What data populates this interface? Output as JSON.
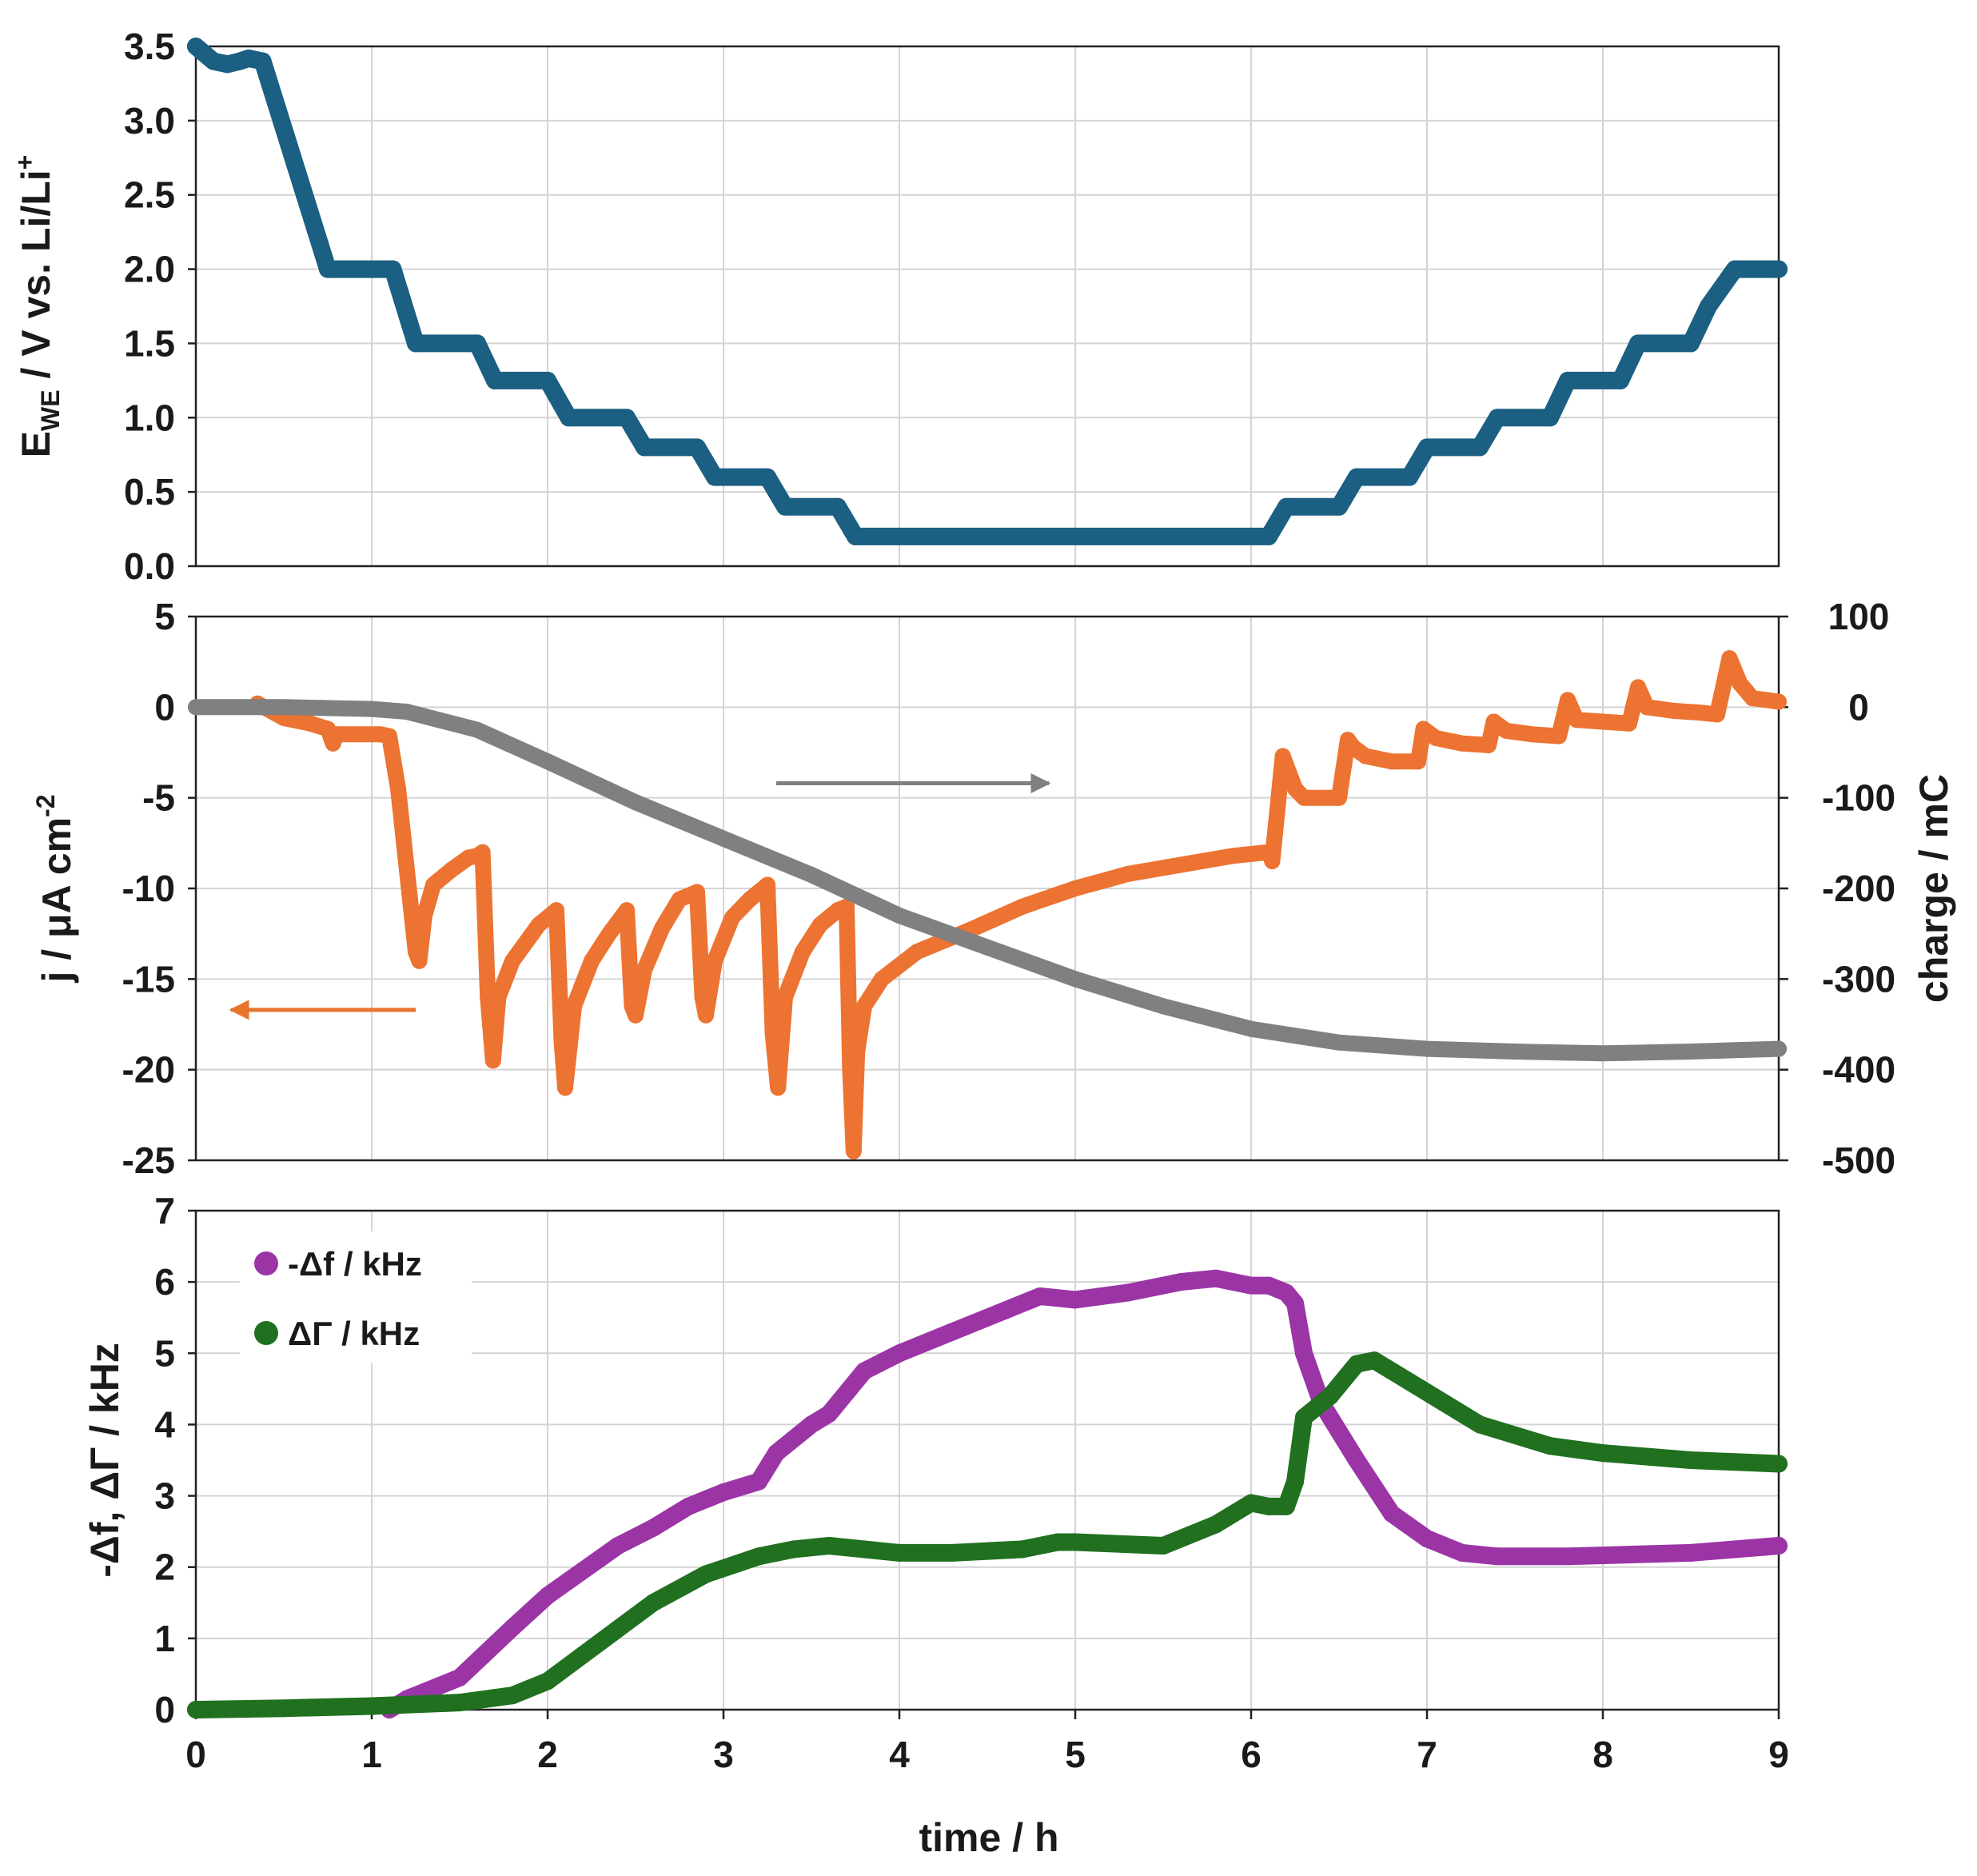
{
  "chart_data": [
    {
      "type": "line",
      "panel": "top",
      "ylabel": "E_WE / V vs. Li/Li+",
      "ylabel_parts": {
        "main": "E",
        "sub": "WE",
        "rest": " / V vs. Li/Li",
        "sup": "+"
      },
      "xlim": [
        0,
        9
      ],
      "ylim": [
        0,
        3.5
      ],
      "yticks": [
        "0.0",
        "0.5",
        "1.0",
        "1.5",
        "2.0",
        "2.5",
        "3.0",
        "3.5"
      ],
      "grid": true,
      "series": [
        {
          "name": "E_WE",
          "color": "#1b5f82",
          "x": [
            0,
            0.05,
            0.1,
            0.18,
            0.25,
            0.3,
            0.38,
            0.75,
            1.12,
            1.25,
            1.6,
            1.7,
            2.0,
            2.12,
            2.45,
            2.55,
            2.85,
            2.95,
            3.25,
            3.35,
            3.65,
            3.75,
            6.1,
            6.2,
            6.5,
            6.6,
            6.9,
            7.0,
            7.3,
            7.4,
            7.7,
            7.8,
            8.1,
            8.2,
            8.5,
            8.6,
            8.75,
            9.0
          ],
          "y": [
            3.5,
            3.45,
            3.4,
            3.38,
            3.4,
            3.42,
            3.4,
            2.0,
            2.0,
            1.5,
            1.5,
            1.25,
            1.25,
            1.0,
            1.0,
            0.8,
            0.8,
            0.6,
            0.6,
            0.4,
            0.4,
            0.2,
            0.2,
            0.4,
            0.4,
            0.6,
            0.6,
            0.8,
            0.8,
            1.0,
            1.0,
            1.25,
            1.25,
            1.5,
            1.5,
            1.75,
            2.0,
            2.0
          ]
        }
      ]
    },
    {
      "type": "line",
      "panel": "middle",
      "ylabel": "j / μA cm-2",
      "ylabel_parts": {
        "main": "j  / μA cm",
        "sup": "-2"
      },
      "y2label": "charge / mC",
      "xlim": [
        0,
        9
      ],
      "ylim": [
        -25,
        5
      ],
      "y2lim": [
        -500,
        100
      ],
      "yticks": [
        "5",
        "0",
        "-5",
        "-10",
        "-15",
        "-20",
        "-25"
      ],
      "y2ticks": [
        "100",
        "0",
        "-100",
        "-200",
        "-300",
        "-400",
        "-500"
      ],
      "grid": true,
      "annotations": [
        {
          "type": "arrow",
          "direction": "right",
          "meaning": "charge series uses right axis",
          "color": "#808080",
          "from": [
            3.3,
            -4.2
          ],
          "to": [
            4.85,
            -4.2
          ]
        },
        {
          "type": "arrow",
          "direction": "left",
          "meaning": "current series uses left axis",
          "color": "#e8742c",
          "from": [
            1.25,
            -16.7
          ],
          "to": [
            0.2,
            -16.7
          ]
        }
      ],
      "series": [
        {
          "name": "j",
          "axis": "left",
          "color": "#ec7331",
          "x": [
            0.35,
            0.5,
            0.65,
            0.75,
            0.78,
            0.8,
            1.05,
            1.1,
            1.15,
            1.2,
            1.25,
            1.27,
            1.3,
            1.35,
            1.45,
            1.55,
            1.6,
            1.63,
            1.66,
            1.69,
            1.72,
            1.8,
            1.95,
            2.05,
            2.08,
            2.1,
            2.15,
            2.25,
            2.35,
            2.45,
            2.48,
            2.5,
            2.55,
            2.65,
            2.75,
            2.85,
            2.88,
            2.9,
            2.95,
            3.05,
            3.15,
            3.25,
            3.28,
            3.31,
            3.35,
            3.45,
            3.55,
            3.65,
            3.7,
            3.72,
            3.74,
            3.76,
            3.8,
            3.9,
            4.1,
            4.4,
            4.7,
            5.0,
            5.3,
            5.6,
            5.9,
            6.1,
            6.12,
            6.18,
            6.25,
            6.3,
            6.4,
            6.5,
            6.55,
            6.58,
            6.65,
            6.8,
            6.95,
            6.98,
            7.05,
            7.2,
            7.35,
            7.38,
            7.45,
            7.6,
            7.75,
            7.8,
            7.85,
            8.0,
            8.15,
            8.2,
            8.25,
            8.4,
            8.55,
            8.65,
            8.72,
            8.78,
            8.85,
            9.0
          ],
          "y": [
            0.2,
            -0.6,
            -0.9,
            -1.2,
            -2.0,
            -1.5,
            -1.5,
            -1.6,
            -4.5,
            -9.0,
            -13.5,
            -14.0,
            -11.5,
            -9.8,
            -9.0,
            -8.3,
            -8.2,
            -8.0,
            -16.0,
            -19.5,
            -16.0,
            -14.0,
            -12.0,
            -11.2,
            -18.5,
            -21.0,
            -16.5,
            -14.0,
            -12.5,
            -11.2,
            -16.5,
            -17.0,
            -14.5,
            -12.2,
            -10.6,
            -10.2,
            -16.0,
            -17.0,
            -14.0,
            -11.6,
            -10.6,
            -9.8,
            -18.0,
            -21.0,
            -16.0,
            -13.5,
            -12.0,
            -11.2,
            -11.0,
            -20.0,
            -24.5,
            -19.0,
            -16.5,
            -15.0,
            -13.5,
            -12.3,
            -11.0,
            -10.0,
            -9.2,
            -8.7,
            -8.2,
            -8.0,
            -8.5,
            -2.7,
            -4.5,
            -5.0,
            -5.0,
            -5.0,
            -1.8,
            -2.2,
            -2.7,
            -3.0,
            -3.0,
            -1.2,
            -1.7,
            -2.0,
            -2.1,
            -0.8,
            -1.3,
            -1.5,
            -1.6,
            0.4,
            -0.7,
            -0.8,
            -0.9,
            1.1,
            0.0,
            -0.2,
            -0.3,
            -0.4,
            2.7,
            1.3,
            0.5,
            0.3
          ]
        },
        {
          "name": "charge",
          "axis": "right",
          "color": "#808080",
          "x": [
            0,
            0.5,
            1.0,
            1.2,
            1.6,
            2.0,
            2.5,
            3.0,
            3.5,
            4.0,
            4.5,
            5.0,
            5.5,
            6.0,
            6.5,
            7.0,
            7.5,
            8.0,
            8.5,
            9.0
          ],
          "y": [
            0,
            0,
            -2,
            -5,
            -25,
            -60,
            -105,
            -145,
            -185,
            -230,
            -265,
            -300,
            -330,
            -355,
            -370,
            -377,
            -380,
            -382,
            -380,
            -377
          ]
        }
      ]
    },
    {
      "type": "line",
      "panel": "bottom",
      "ylabel": "-Δf, ΔΓ / kHz",
      "xlabel": "time / h",
      "xlim": [
        0,
        9
      ],
      "ylim": [
        0,
        7
      ],
      "xticks": [
        "0",
        "1",
        "2",
        "3",
        "4",
        "5",
        "6",
        "7",
        "8",
        "9"
      ],
      "yticks": [
        "0",
        "1",
        "2",
        "3",
        "4",
        "5",
        "6",
        "7"
      ],
      "grid": true,
      "legend": "top-left",
      "series": [
        {
          "name": "-Δf / kHz",
          "color": "#9b35a6",
          "x": [
            1.1,
            1.2,
            1.5,
            1.8,
            2.0,
            2.2,
            2.4,
            2.6,
            2.8,
            3.0,
            3.2,
            3.3,
            3.5,
            3.6,
            3.8,
            4.0,
            4.3,
            4.6,
            4.8,
            5.0,
            5.3,
            5.6,
            5.8,
            6.0,
            6.1,
            6.2,
            6.25,
            6.3,
            6.4,
            6.6,
            6.8,
            7.0,
            7.2,
            7.4,
            7.8,
            8.5,
            9.0
          ],
          "y": [
            0.0,
            0.15,
            0.45,
            1.15,
            1.6,
            1.95,
            2.3,
            2.55,
            2.85,
            3.05,
            3.2,
            3.6,
            4.0,
            4.15,
            4.75,
            5.0,
            5.3,
            5.6,
            5.8,
            5.75,
            5.85,
            6.0,
            6.05,
            5.95,
            5.95,
            5.85,
            5.7,
            5.0,
            4.3,
            3.5,
            2.75,
            2.4,
            2.2,
            2.15,
            2.15,
            2.2,
            2.3
          ]
        },
        {
          "name": "ΔΓ / kHz",
          "color": "#207020",
          "x": [
            0,
            0.5,
            1.0,
            1.5,
            1.8,
            2.0,
            2.3,
            2.6,
            2.9,
            3.2,
            3.4,
            3.6,
            3.8,
            4.0,
            4.3,
            4.7,
            4.9,
            5.0,
            5.5,
            5.8,
            6.0,
            6.1,
            6.2,
            6.25,
            6.3,
            6.45,
            6.6,
            6.7,
            6.9,
            7.3,
            7.7,
            8.0,
            8.5,
            9.0
          ],
          "y": [
            0.0,
            0.02,
            0.05,
            0.1,
            0.2,
            0.4,
            0.95,
            1.5,
            1.9,
            2.15,
            2.25,
            2.3,
            2.25,
            2.2,
            2.2,
            2.25,
            2.35,
            2.35,
            2.3,
            2.6,
            2.9,
            2.85,
            2.85,
            3.2,
            4.1,
            4.4,
            4.85,
            4.9,
            4.6,
            4.0,
            3.7,
            3.6,
            3.5,
            3.45
          ]
        }
      ]
    }
  ]
}
